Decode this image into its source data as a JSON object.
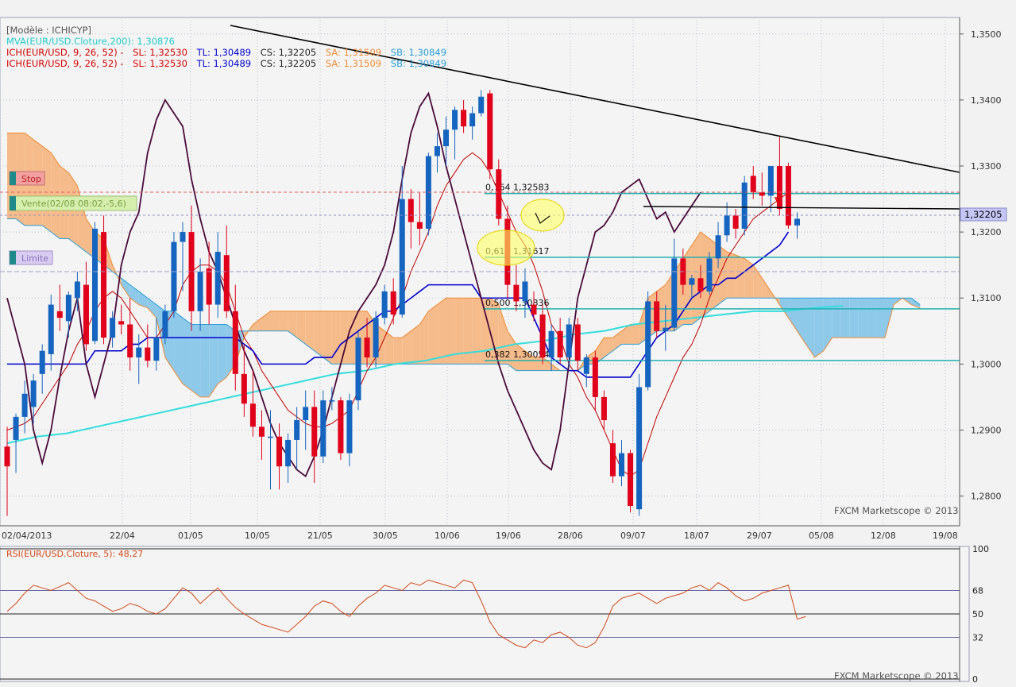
{
  "colors": {
    "bg": "#f2f2f2",
    "grid": "#b8bcc8",
    "up": "#1565c0",
    "down": "#e0001b",
    "kumo_bear": "#f6bb8a",
    "kumo_bull": "#8ec9ea",
    "kumo_edge_a": "#f08a30",
    "kumo_edge_b": "#2a9fd6",
    "tenkan": "#c00000",
    "kijun": "#0000cc",
    "chikou": "#4a0a3a",
    "mva": "#33dddd",
    "fib": "#20b0b0",
    "trend": "#000000",
    "rsi": "#d24a1a",
    "price_tag": "#c6c6f6"
  },
  "legend": {
    "model": "[Modèle : ICHICYP]",
    "mva": "MVA(EUR/USD.Cloture,200): 1,30876",
    "ich_prefix": "ICH(EUR/USD, 9, 26, 52) -",
    "sl": "SL: 1,32530",
    "tl": "TL: 1,30489",
    "cs": "CS: 1,32205",
    "sa": "SA: 1,31509",
    "sb": "SB: 1,30849"
  },
  "tags": {
    "stop": "Stop",
    "vente": "Vente(02/08 08:02,-5,6)",
    "limite": "Limite"
  },
  "current_price": "1,32205",
  "watermark": "FXCM Marketscope © 2013",
  "rsi_legend": "RSI(EUR/USD.Cloture, 5): 48,27",
  "chart_data": {
    "type": "candlestick",
    "title": "[Modèle : ICHICYP]",
    "ylim": [
      1.2755,
      1.3525
    ],
    "y_ticks": [
      "1,3500",
      "1,3400",
      "1,3300",
      "1,3200",
      "1,3100",
      "1,3000",
      "1,2900",
      "1,2800"
    ],
    "y_tick_values": [
      1.35,
      1.34,
      1.33,
      1.32,
      1.31,
      1.3,
      1.29,
      1.28
    ],
    "x_tick_labels": [
      "02/04/2013",
      "22/04",
      "01/05",
      "10/05",
      "21/05",
      "30/05",
      "10/06",
      "19/06",
      "28/06",
      "09/07",
      "18/07",
      "29/07",
      "05/08",
      "12/08",
      "19/08"
    ],
    "candles": [
      {
        "o": 1.2875,
        "h": 1.2905,
        "l": 1.277,
        "c": 1.2845
      },
      {
        "o": 1.2885,
        "h": 1.2925,
        "l": 1.2835,
        "c": 1.292
      },
      {
        "o": 1.292,
        "h": 1.2975,
        "l": 1.2895,
        "c": 1.2955
      },
      {
        "o": 1.2935,
        "h": 1.2985,
        "l": 1.291,
        "c": 1.2975
      },
      {
        "o": 1.2985,
        "h": 1.303,
        "l": 1.2955,
        "c": 1.302
      },
      {
        "o": 1.3015,
        "h": 1.3105,
        "l": 1.299,
        "c": 1.309
      },
      {
        "o": 1.308,
        "h": 1.312,
        "l": 1.305,
        "c": 1.307
      },
      {
        "o": 1.3065,
        "h": 1.311,
        "l": 1.304,
        "c": 1.3105
      },
      {
        "o": 1.31,
        "h": 1.314,
        "l": 1.308,
        "c": 1.3125
      },
      {
        "o": 1.312,
        "h": 1.3155,
        "l": 1.302,
        "c": 1.303
      },
      {
        "o": 1.3035,
        "h": 1.3215,
        "l": 1.303,
        "c": 1.3205
      },
      {
        "o": 1.32,
        "h": 1.3225,
        "l": 1.303,
        "c": 1.304
      },
      {
        "o": 1.304,
        "h": 1.308,
        "l": 1.3025,
        "c": 1.307
      },
      {
        "o": 1.3065,
        "h": 1.309,
        "l": 1.3045,
        "c": 1.306
      },
      {
        "o": 1.306,
        "h": 1.31,
        "l": 1.299,
        "c": 1.301
      },
      {
        "o": 1.301,
        "h": 1.3045,
        "l": 1.297,
        "c": 1.3025
      },
      {
        "o": 1.3025,
        "h": 1.306,
        "l": 1.2995,
        "c": 1.3005
      },
      {
        "o": 1.3005,
        "h": 1.307,
        "l": 1.299,
        "c": 1.304
      },
      {
        "o": 1.304,
        "h": 1.309,
        "l": 1.303,
        "c": 1.308
      },
      {
        "o": 1.308,
        "h": 1.32,
        "l": 1.307,
        "c": 1.3185
      },
      {
        "o": 1.3185,
        "h": 1.3215,
        "l": 1.311,
        "c": 1.32
      },
      {
        "o": 1.32,
        "h": 1.324,
        "l": 1.305,
        "c": 1.308
      },
      {
        "o": 1.308,
        "h": 1.316,
        "l": 1.305,
        "c": 1.314
      },
      {
        "o": 1.3145,
        "h": 1.3185,
        "l": 1.306,
        "c": 1.309
      },
      {
        "o": 1.309,
        "h": 1.32,
        "l": 1.307,
        "c": 1.317
      },
      {
        "o": 1.3165,
        "h": 1.321,
        "l": 1.307,
        "c": 1.308
      },
      {
        "o": 1.308,
        "h": 1.312,
        "l": 1.296,
        "c": 1.2985
      },
      {
        "o": 1.2985,
        "h": 1.303,
        "l": 1.292,
        "c": 1.294
      },
      {
        "o": 1.294,
        "h": 1.299,
        "l": 1.289,
        "c": 1.2905
      },
      {
        "o": 1.2905,
        "h": 1.293,
        "l": 1.2855,
        "c": 1.289
      },
      {
        "o": 1.289,
        "h": 1.293,
        "l": 1.281,
        "c": 1.289
      },
      {
        "o": 1.289,
        "h": 1.291,
        "l": 1.281,
        "c": 1.2845
      },
      {
        "o": 1.2845,
        "h": 1.2895,
        "l": 1.282,
        "c": 1.2885
      },
      {
        "o": 1.2885,
        "h": 1.2935,
        "l": 1.284,
        "c": 1.2915
      },
      {
        "o": 1.2915,
        "h": 1.296,
        "l": 1.287,
        "c": 1.2935
      },
      {
        "o": 1.2935,
        "h": 1.296,
        "l": 1.282,
        "c": 1.286
      },
      {
        "o": 1.286,
        "h": 1.296,
        "l": 1.285,
        "c": 1.2945
      },
      {
        "o": 1.2945,
        "h": 1.2965,
        "l": 1.293,
        "c": 1.2945
      },
      {
        "o": 1.2945,
        "h": 1.295,
        "l": 1.2855,
        "c": 1.2865
      },
      {
        "o": 1.2865,
        "h": 1.2955,
        "l": 1.2845,
        "c": 1.2945
      },
      {
        "o": 1.2945,
        "h": 1.305,
        "l": 1.293,
        "c": 1.304
      },
      {
        "o": 1.304,
        "h": 1.307,
        "l": 1.2995,
        "c": 1.301
      },
      {
        "o": 1.301,
        "h": 1.308,
        "l": 1.2995,
        "c": 1.307
      },
      {
        "o": 1.307,
        "h": 1.312,
        "l": 1.306,
        "c": 1.311
      },
      {
        "o": 1.311,
        "h": 1.313,
        "l": 1.306,
        "c": 1.3075
      },
      {
        "o": 1.3075,
        "h": 1.33,
        "l": 1.307,
        "c": 1.325
      },
      {
        "o": 1.325,
        "h": 1.3265,
        "l": 1.3175,
        "c": 1.3215
      },
      {
        "o": 1.3215,
        "h": 1.326,
        "l": 1.318,
        "c": 1.3205
      },
      {
        "o": 1.3205,
        "h": 1.332,
        "l": 1.3195,
        "c": 1.3315
      },
      {
        "o": 1.3315,
        "h": 1.335,
        "l": 1.329,
        "c": 1.333
      },
      {
        "o": 1.333,
        "h": 1.3375,
        "l": 1.33,
        "c": 1.3355
      },
      {
        "o": 1.3355,
        "h": 1.339,
        "l": 1.331,
        "c": 1.3385
      },
      {
        "o": 1.3385,
        "h": 1.34,
        "l": 1.335,
        "c": 1.336
      },
      {
        "o": 1.336,
        "h": 1.339,
        "l": 1.334,
        "c": 1.338
      },
      {
        "o": 1.338,
        "h": 1.3415,
        "l": 1.3375,
        "c": 1.3405
      },
      {
        "o": 1.341,
        "h": 1.3415,
        "l": 1.328,
        "c": 1.3295
      },
      {
        "o": 1.3295,
        "h": 1.331,
        "l": 1.321,
        "c": 1.322
      },
      {
        "o": 1.322,
        "h": 1.324,
        "l": 1.31,
        "c": 1.312
      },
      {
        "o": 1.312,
        "h": 1.315,
        "l": 1.308,
        "c": 1.3095
      },
      {
        "o": 1.3095,
        "h": 1.3145,
        "l": 1.307,
        "c": 1.3125
      },
      {
        "o": 1.309,
        "h": 1.311,
        "l": 1.3065,
        "c": 1.3075
      },
      {
        "o": 1.3075,
        "h": 1.309,
        "l": 1.3,
        "c": 1.301
      },
      {
        "o": 1.301,
        "h": 1.306,
        "l": 1.299,
        "c": 1.305
      },
      {
        "o": 1.305,
        "h": 1.307,
        "l": 1.3,
        "c": 1.301
      },
      {
        "o": 1.301,
        "h": 1.307,
        "l": 1.2995,
        "c": 1.306
      },
      {
        "o": 1.306,
        "h": 1.307,
        "l": 1.299,
        "c": 1.3005
      },
      {
        "o": 1.2985,
        "h": 1.3015,
        "l": 1.2965,
        "c": 1.301
      },
      {
        "o": 1.301,
        "h": 1.302,
        "l": 1.293,
        "c": 1.295
      },
      {
        "o": 1.295,
        "h": 1.296,
        "l": 1.29,
        "c": 1.2915
      },
      {
        "o": 1.288,
        "h": 1.29,
        "l": 1.282,
        "c": 1.283
      },
      {
        "o": 1.283,
        "h": 1.2885,
        "l": 1.2815,
        "c": 1.2865
      },
      {
        "o": 1.2865,
        "h": 1.287,
        "l": 1.2775,
        "c": 1.2785
      },
      {
        "o": 1.278,
        "h": 1.2985,
        "l": 1.277,
        "c": 1.2965
      },
      {
        "o": 1.2965,
        "h": 1.311,
        "l": 1.296,
        "c": 1.3095
      },
      {
        "o": 1.3095,
        "h": 1.311,
        "l": 1.304,
        "c": 1.305
      },
      {
        "o": 1.305,
        "h": 1.309,
        "l": 1.302,
        "c": 1.3055
      },
      {
        "o": 1.3055,
        "h": 1.319,
        "l": 1.305,
        "c": 1.316
      },
      {
        "o": 1.316,
        "h": 1.3175,
        "l": 1.3105,
        "c": 1.312
      },
      {
        "o": 1.312,
        "h": 1.3135,
        "l": 1.31,
        "c": 1.313
      },
      {
        "o": 1.313,
        "h": 1.315,
        "l": 1.31,
        "c": 1.311
      },
      {
        "o": 1.311,
        "h": 1.317,
        "l": 1.3105,
        "c": 1.316
      },
      {
        "o": 1.316,
        "h": 1.3215,
        "l": 1.3145,
        "c": 1.3195
      },
      {
        "o": 1.3195,
        "h": 1.3245,
        "l": 1.3185,
        "c": 1.3225
      },
      {
        "o": 1.3225,
        "h": 1.3235,
        "l": 1.319,
        "c": 1.3205
      },
      {
        "o": 1.3205,
        "h": 1.3285,
        "l": 1.3195,
        "c": 1.3275
      },
      {
        "o": 1.3285,
        "h": 1.33,
        "l": 1.325,
        "c": 1.326
      },
      {
        "o": 1.326,
        "h": 1.329,
        "l": 1.324,
        "c": 1.3255
      },
      {
        "o": 1.3255,
        "h": 1.33,
        "l": 1.323,
        "c": 1.33
      },
      {
        "o": 1.33,
        "h": 1.3345,
        "l": 1.3225,
        "c": 1.3235
      },
      {
        "o": 1.33,
        "h": 1.3305,
        "l": 1.3205,
        "c": 1.321
      },
      {
        "o": 1.321,
        "h": 1.323,
        "l": 1.319,
        "c": 1.322
      }
    ],
    "cloud_a": [
      1.335,
      1.335,
      1.335,
      1.334,
      1.333,
      1.332,
      1.33,
      1.329,
      1.327,
      1.322,
      1.32,
      1.319,
      1.315,
      1.312,
      1.31,
      1.309,
      1.3085,
      1.307,
      1.301,
      1.299,
      1.297,
      1.296,
      1.295,
      1.295,
      1.297,
      1.298,
      1.3,
      1.304,
      1.306,
      1.307,
      1.308,
      1.308,
      1.308,
      1.308,
      1.308,
      1.308,
      1.308,
      1.308,
      1.308,
      1.308,
      1.308,
      1.308,
      1.306,
      1.305,
      1.304,
      1.304,
      1.305,
      1.306,
      1.308,
      1.309,
      1.31,
      1.31,
      1.31,
      1.31,
      1.31,
      1.31,
      1.309,
      1.305,
      1.303,
      1.302,
      1.301,
      1.301,
      1.3,
      1.299,
      1.299,
      1.299,
      1.301,
      1.302,
      1.304,
      1.304,
      1.305,
      1.306,
      1.306,
      1.31,
      1.311,
      1.312,
      1.314,
      1.316,
      1.318,
      1.32,
      1.319,
      1.318,
      1.317,
      1.3165,
      1.316,
      1.315,
      1.313,
      1.311,
      1.309,
      1.307,
      1.305,
      1.303,
      1.301,
      1.302,
      1.304,
      1.304,
      1.304,
      1.304,
      1.304,
      1.304,
      1.304,
      1.309,
      1.31,
      1.309,
      1.3085
    ],
    "cloud_b": [
      1.322,
      1.322,
      1.321,
      1.321,
      1.321,
      1.32,
      1.319,
      1.319,
      1.318,
      1.317,
      1.316,
      1.315,
      1.314,
      1.313,
      1.312,
      1.311,
      1.31,
      1.309,
      1.308,
      1.308,
      1.307,
      1.306,
      1.306,
      1.306,
      1.306,
      1.306,
      1.305,
      1.305,
      1.305,
      1.305,
      1.305,
      1.305,
      1.305,
      1.304,
      1.303,
      1.302,
      1.301,
      1.3,
      1.3,
      1.3,
      1.3,
      1.3,
      1.3,
      1.3,
      1.3,
      1.3,
      1.3,
      1.3,
      1.3,
      1.3,
      1.3,
      1.3,
      1.3,
      1.3,
      1.3,
      1.3,
      1.3,
      1.3,
      1.299,
      1.299,
      1.299,
      1.299,
      1.299,
      1.299,
      1.299,
      1.299,
      1.3,
      1.3,
      1.301,
      1.302,
      1.303,
      1.303,
      1.303,
      1.304,
      1.305,
      1.305,
      1.305,
      1.306,
      1.306,
      1.307,
      1.308,
      1.309,
      1.31,
      1.31,
      1.31,
      1.31,
      1.31,
      1.31,
      1.31,
      1.31,
      1.31,
      1.31,
      1.31,
      1.31,
      1.31,
      1.31,
      1.31,
      1.31,
      1.31,
      1.31,
      1.31,
      1.31,
      1.31,
      1.31,
      1.309
    ],
    "tenkan": [
      1.29,
      1.2905,
      1.291,
      1.292,
      1.294,
      1.296,
      1.298,
      1.3,
      1.303,
      1.305,
      1.308,
      1.31,
      1.311,
      1.31,
      1.308,
      1.306,
      1.304,
      1.304,
      1.306,
      1.308,
      1.312,
      1.314,
      1.315,
      1.315,
      1.314,
      1.312,
      1.308,
      1.304,
      1.302,
      1.299,
      1.297,
      1.295,
      1.293,
      1.292,
      1.291,
      1.2905,
      1.2905,
      1.291,
      1.292,
      1.293,
      1.296,
      1.299,
      1.301,
      1.304,
      1.307,
      1.31,
      1.314,
      1.317,
      1.32,
      1.324,
      1.327,
      1.329,
      1.331,
      1.332,
      1.331,
      1.329,
      1.326,
      1.323,
      1.32,
      1.318,
      1.315,
      1.311,
      1.306,
      1.304,
      1.3,
      1.298,
      1.295,
      1.293,
      1.29,
      1.287,
      1.284,
      1.283,
      1.284,
      1.288,
      1.292,
      1.295,
      1.298,
      1.301,
      1.303,
      1.306,
      1.31,
      1.313,
      1.316,
      1.318,
      1.32,
      1.322,
      1.323,
      1.324,
      1.325,
      1.326
    ],
    "kijun": [
      1.3,
      1.3,
      1.3,
      1.3,
      1.3,
      1.3,
      1.3,
      1.3,
      1.3,
      1.3,
      1.302,
      1.302,
      1.302,
      1.302,
      1.303,
      1.303,
      1.304,
      1.304,
      1.304,
      1.304,
      1.304,
      1.304,
      1.304,
      1.304,
      1.304,
      1.304,
      1.304,
      1.303,
      1.302,
      1.3,
      1.3,
      1.3,
      1.3,
      1.3,
      1.3,
      1.301,
      1.301,
      1.301,
      1.303,
      1.304,
      1.305,
      1.306,
      1.307,
      1.308,
      1.308,
      1.309,
      1.31,
      1.311,
      1.312,
      1.312,
      1.312,
      1.312,
      1.312,
      1.312,
      1.31,
      1.31,
      1.31,
      1.31,
      1.31,
      1.31,
      1.307,
      1.304,
      1.301,
      1.3,
      1.299,
      1.299,
      1.298,
      1.298,
      1.298,
      1.298,
      1.298,
      1.298,
      1.3,
      1.302,
      1.304,
      1.305,
      1.306,
      1.308,
      1.31,
      1.311,
      1.312,
      1.312,
      1.313,
      1.313,
      1.314,
      1.315,
      1.316,
      1.317,
      1.318,
      1.32
    ],
    "chikou": [
      1.31,
      1.305,
      1.3,
      1.29,
      1.285,
      1.29,
      1.298,
      1.305,
      1.31,
      1.3,
      1.295,
      1.3,
      1.305,
      1.315,
      1.32,
      1.323,
      1.332,
      1.337,
      1.34,
      1.338,
      1.336,
      1.328,
      1.322,
      1.317,
      1.314,
      1.31,
      1.306,
      1.302,
      1.299,
      1.295,
      1.291,
      1.288,
      1.286,
      1.284,
      1.283,
      1.286,
      1.29,
      1.295,
      1.3,
      1.305,
      1.308,
      1.31,
      1.312,
      1.315,
      1.32,
      1.328,
      1.335,
      1.339,
      1.341,
      1.336,
      1.33,
      1.325,
      1.32,
      1.315,
      1.31,
      1.305,
      1.3,
      1.296,
      1.293,
      1.29,
      1.287,
      1.285,
      1.284,
      1.29,
      1.3,
      1.31,
      1.315,
      1.32,
      1.321,
      1.323,
      1.326,
      1.327,
      1.328,
      1.325,
      1.322,
      1.323,
      1.32,
      1.322,
      1.324,
      1.326
    ],
    "mva200": [
      1.288,
      1.289,
      1.2895,
      1.2905,
      1.2915,
      1.2925,
      1.2935,
      1.2945,
      1.2955,
      1.2965,
      1.2975,
      1.2985,
      1.299,
      1.3,
      1.3005,
      1.3015,
      1.302,
      1.303,
      1.3035,
      1.3045,
      1.305,
      1.306,
      1.3065,
      1.307,
      1.3075,
      1.308,
      1.308,
      1.3085,
      1.3088
    ],
    "rsi": {
      "ylim": [
        0,
        100
      ],
      "levels": [
        100,
        68,
        50,
        32,
        0
      ],
      "values": [
        52,
        58,
        66,
        72,
        70,
        68,
        71,
        74,
        68,
        62,
        60,
        56,
        52,
        54,
        58,
        56,
        52,
        50,
        54,
        62,
        70,
        66,
        58,
        64,
        70,
        62,
        55,
        50,
        46,
        42,
        40,
        38,
        36,
        42,
        48,
        56,
        60,
        58,
        52,
        48,
        56,
        62,
        66,
        72,
        70,
        68,
        74,
        72,
        76,
        74,
        72,
        70,
        76,
        74,
        60,
        44,
        34,
        30,
        26,
        24,
        30,
        28,
        34,
        36,
        32,
        26,
        24,
        28,
        40,
        56,
        62,
        64,
        66,
        62,
        58,
        62,
        64,
        66,
        70,
        72,
        68,
        74,
        70,
        64,
        60,
        62,
        66,
        68,
        70,
        72,
        46,
        48
      ]
    }
  },
  "fib": [
    {
      "label": "0,764 1,32583",
      "value": 1.32583
    },
    {
      "label": "0,618 1,31617",
      "value": 1.31617
    },
    {
      "label": "0,500 1,30836",
      "value": 1.30836
    },
    {
      "label": "0,382 1,30054",
      "value": 1.30054
    }
  ]
}
